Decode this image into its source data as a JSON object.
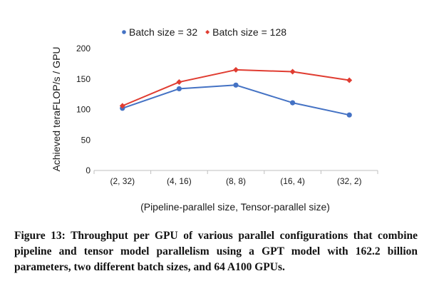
{
  "caption": {
    "text": "Figure 13: Throughput per GPU of various parallel configurations that combine pipeline and tensor model parallelism using a GPT model with 162.2 billion parameters, two different batch sizes, and 64 A100 GPUs."
  },
  "chart_data": {
    "type": "line",
    "title": "",
    "categories": [
      "(2, 32)",
      "(4, 16)",
      "(8, 8)",
      "(16, 4)",
      "(32, 2)"
    ],
    "xlabel": "(Pipeline-parallel size, Tensor-parallel size)",
    "ylabel": "Achieved teraFLOP/s / GPU",
    "ylim": [
      0,
      200
    ],
    "yticks": [
      0,
      50,
      100,
      150,
      200
    ],
    "grid": false,
    "legend_position": "top-center",
    "series": [
      {
        "name": "Batch size = 32",
        "color": "#4472c4",
        "marker": "circle",
        "values": [
          102,
          134,
          140,
          111,
          91
        ]
      },
      {
        "name": "Batch size = 128",
        "color": "#e03c31",
        "marker": "diamond",
        "values": [
          106,
          145,
          165,
          162,
          148
        ]
      }
    ]
  }
}
